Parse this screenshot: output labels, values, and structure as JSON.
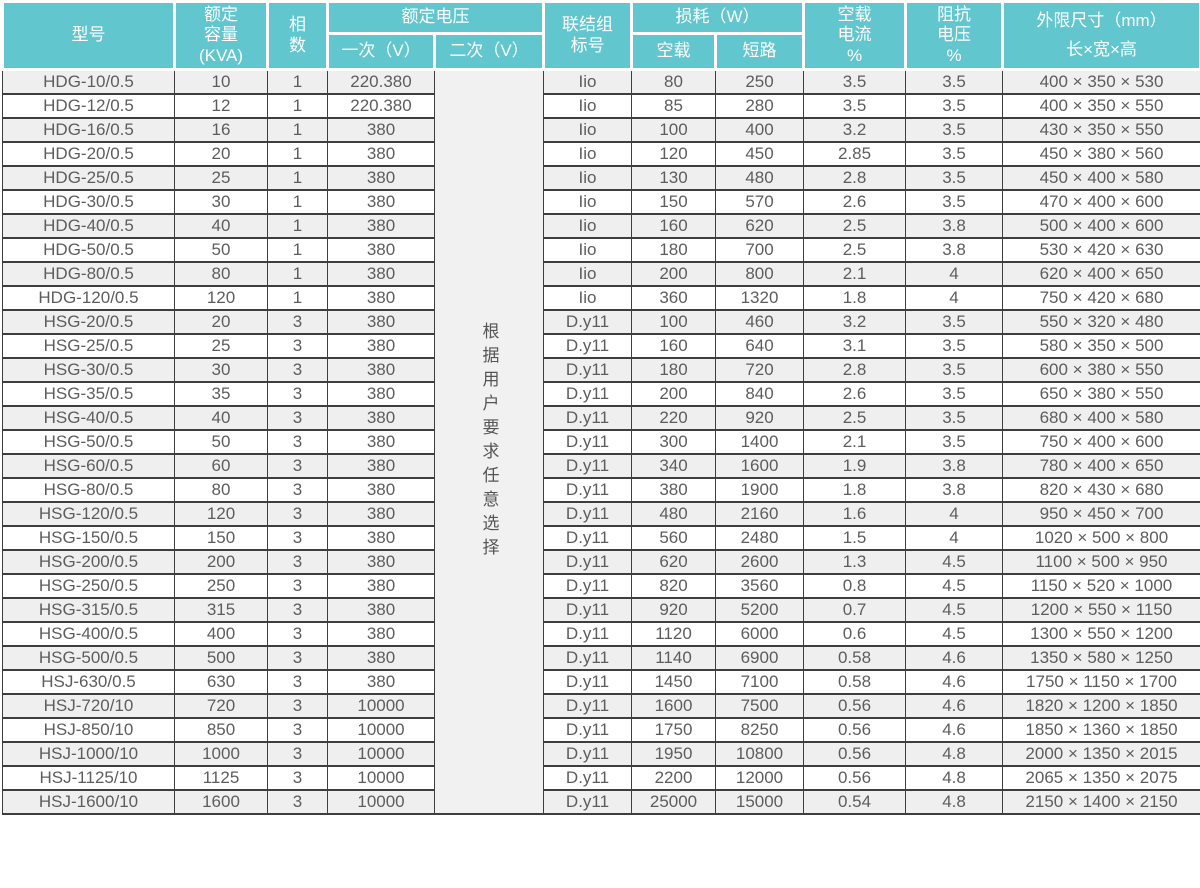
{
  "colors": {
    "header_bg": "#62c6cf",
    "header_text": "#ffffff",
    "border": "#3e3e3e",
    "row_alt_bg": "#efefef",
    "note_bg": "#f1f1f1",
    "cell_text": "#5d5d5d"
  },
  "table": {
    "header": {
      "model": "型号",
      "capacity": "额定\n容量\n(KVA)",
      "phases": "相\n数",
      "voltage_group": "额定电压",
      "primary": "一次（V）",
      "secondary": "二次（V）",
      "connection": "联结组\n标号",
      "loss_group": "损耗（W）",
      "no_load": "空载",
      "short_circuit": "短路",
      "no_load_current": "空载\n电流\n%",
      "impedance_voltage": "阻抗\n电压\n%",
      "dimensions": "外限尺寸（mm）\n长×宽×高"
    },
    "secondary_note": "根据用户要求任意选择",
    "rows": [
      {
        "model": "HDG-10/0.5",
        "capacity_kva": "10",
        "phases": "1",
        "primary_v": "220.380",
        "connection": "Iio",
        "no_load_w": "80",
        "short_circuit_w": "250",
        "no_load_current_pct": "3.5",
        "impedance_v_pct": "3.5",
        "dimensions": "400 × 350 × 530"
      },
      {
        "model": "HDG-12/0.5",
        "capacity_kva": "12",
        "phases": "1",
        "primary_v": "220.380",
        "connection": "Iio",
        "no_load_w": "85",
        "short_circuit_w": "280",
        "no_load_current_pct": "3.5",
        "impedance_v_pct": "3.5",
        "dimensions": "400 × 350 × 550"
      },
      {
        "model": "HDG-16/0.5",
        "capacity_kva": "16",
        "phases": "1",
        "primary_v": "380",
        "connection": "Iio",
        "no_load_w": "100",
        "short_circuit_w": "400",
        "no_load_current_pct": "3.2",
        "impedance_v_pct": "3.5",
        "dimensions": "430 × 350 × 550"
      },
      {
        "model": "HDG-20/0.5",
        "capacity_kva": "20",
        "phases": "1",
        "primary_v": "380",
        "connection": "Iio",
        "no_load_w": "120",
        "short_circuit_w": "450",
        "no_load_current_pct": "2.85",
        "impedance_v_pct": "3.5",
        "dimensions": "450 × 380 × 560"
      },
      {
        "model": "HDG-25/0.5",
        "capacity_kva": "25",
        "phases": "1",
        "primary_v": "380",
        "connection": "Iio",
        "no_load_w": "130",
        "short_circuit_w": "480",
        "no_load_current_pct": "2.8",
        "impedance_v_pct": "3.5",
        "dimensions": "450 × 400 × 580"
      },
      {
        "model": "HDG-30/0.5",
        "capacity_kva": "30",
        "phases": "1",
        "primary_v": "380",
        "connection": "Iio",
        "no_load_w": "150",
        "short_circuit_w": "570",
        "no_load_current_pct": "2.6",
        "impedance_v_pct": "3.5",
        "dimensions": "470 × 400 × 600"
      },
      {
        "model": "HDG-40/0.5",
        "capacity_kva": "40",
        "phases": "1",
        "primary_v": "380",
        "connection": "Iio",
        "no_load_w": "160",
        "short_circuit_w": "620",
        "no_load_current_pct": "2.5",
        "impedance_v_pct": "3.8",
        "dimensions": "500 × 400 × 600"
      },
      {
        "model": "HDG-50/0.5",
        "capacity_kva": "50",
        "phases": "1",
        "primary_v": "380",
        "connection": "Iio",
        "no_load_w": "180",
        "short_circuit_w": "700",
        "no_load_current_pct": "2.5",
        "impedance_v_pct": "3.8",
        "dimensions": "530 × 420 × 630"
      },
      {
        "model": "HDG-80/0.5",
        "capacity_kva": "80",
        "phases": "1",
        "primary_v": "380",
        "connection": "Iio",
        "no_load_w": "200",
        "short_circuit_w": "800",
        "no_load_current_pct": "2.1",
        "impedance_v_pct": "4",
        "dimensions": "620 × 400 × 650"
      },
      {
        "model": "HDG-120/0.5",
        "capacity_kva": "120",
        "phases": "1",
        "primary_v": "380",
        "connection": "Iio",
        "no_load_w": "360",
        "short_circuit_w": "1320",
        "no_load_current_pct": "1.8",
        "impedance_v_pct": "4",
        "dimensions": "750 × 420 × 680"
      },
      {
        "model": "HSG-20/0.5",
        "capacity_kva": "20",
        "phases": "3",
        "primary_v": "380",
        "connection": "D.y11",
        "no_load_w": "100",
        "short_circuit_w": "460",
        "no_load_current_pct": "3.2",
        "impedance_v_pct": "3.5",
        "dimensions": "550 × 320 × 480"
      },
      {
        "model": "HSG-25/0.5",
        "capacity_kva": "25",
        "phases": "3",
        "primary_v": "380",
        "connection": "D.y11",
        "no_load_w": "160",
        "short_circuit_w": "640",
        "no_load_current_pct": "3.1",
        "impedance_v_pct": "3.5",
        "dimensions": "580 × 350 × 500"
      },
      {
        "model": "HSG-30/0.5",
        "capacity_kva": "30",
        "phases": "3",
        "primary_v": "380",
        "connection": "D.y11",
        "no_load_w": "180",
        "short_circuit_w": "720",
        "no_load_current_pct": "2.8",
        "impedance_v_pct": "3.5",
        "dimensions": "600 × 380 × 550"
      },
      {
        "model": "HSG-35/0.5",
        "capacity_kva": "35",
        "phases": "3",
        "primary_v": "380",
        "connection": "D.y11",
        "no_load_w": "200",
        "short_circuit_w": "840",
        "no_load_current_pct": "2.6",
        "impedance_v_pct": "3.5",
        "dimensions": "650 × 380 × 550"
      },
      {
        "model": "HSG-40/0.5",
        "capacity_kva": "40",
        "phases": "3",
        "primary_v": "380",
        "connection": "D.y11",
        "no_load_w": "220",
        "short_circuit_w": "920",
        "no_load_current_pct": "2.5",
        "impedance_v_pct": "3.5",
        "dimensions": "680 × 400 × 580"
      },
      {
        "model": "HSG-50/0.5",
        "capacity_kva": "50",
        "phases": "3",
        "primary_v": "380",
        "connection": "D.y11",
        "no_load_w": "300",
        "short_circuit_w": "1400",
        "no_load_current_pct": "2.1",
        "impedance_v_pct": "3.5",
        "dimensions": "750 × 400 × 600"
      },
      {
        "model": "HSG-60/0.5",
        "capacity_kva": "60",
        "phases": "3",
        "primary_v": "380",
        "connection": "D.y11",
        "no_load_w": "340",
        "short_circuit_w": "1600",
        "no_load_current_pct": "1.9",
        "impedance_v_pct": "3.8",
        "dimensions": "780 × 400 × 650"
      },
      {
        "model": "HSG-80/0.5",
        "capacity_kva": "80",
        "phases": "3",
        "primary_v": "380",
        "connection": "D.y11",
        "no_load_w": "380",
        "short_circuit_w": "1900",
        "no_load_current_pct": "1.8",
        "impedance_v_pct": "3.8",
        "dimensions": "820 × 430 × 680"
      },
      {
        "model": "HSG-120/0.5",
        "capacity_kva": "120",
        "phases": "3",
        "primary_v": "380",
        "connection": "D.y11",
        "no_load_w": "480",
        "short_circuit_w": "2160",
        "no_load_current_pct": "1.6",
        "impedance_v_pct": "4",
        "dimensions": "950 × 450 × 700"
      },
      {
        "model": "HSG-150/0.5",
        "capacity_kva": "150",
        "phases": "3",
        "primary_v": "380",
        "connection": "D.y11",
        "no_load_w": "560",
        "short_circuit_w": "2480",
        "no_load_current_pct": "1.5",
        "impedance_v_pct": "4",
        "dimensions": "1020 × 500 × 800"
      },
      {
        "model": "HSG-200/0.5",
        "capacity_kva": "200",
        "phases": "3",
        "primary_v": "380",
        "connection": "D.y11",
        "no_load_w": "620",
        "short_circuit_w": "2600",
        "no_load_current_pct": "1.3",
        "impedance_v_pct": "4.5",
        "dimensions": "1100 × 500 × 950"
      },
      {
        "model": "HSG-250/0.5",
        "capacity_kva": "250",
        "phases": "3",
        "primary_v": "380",
        "connection": "D.y11",
        "no_load_w": "820",
        "short_circuit_w": "3560",
        "no_load_current_pct": "0.8",
        "impedance_v_pct": "4.5",
        "dimensions": "1150 × 520 × 1000"
      },
      {
        "model": "HSG-315/0.5",
        "capacity_kva": "315",
        "phases": "3",
        "primary_v": "380",
        "connection": "D.y11",
        "no_load_w": "920",
        "short_circuit_w": "5200",
        "no_load_current_pct": "0.7",
        "impedance_v_pct": "4.5",
        "dimensions": "1200 × 550 × 1150"
      },
      {
        "model": "HSG-400/0.5",
        "capacity_kva": "400",
        "phases": "3",
        "primary_v": "380",
        "connection": "D.y11",
        "no_load_w": "1120",
        "short_circuit_w": "6000",
        "no_load_current_pct": "0.6",
        "impedance_v_pct": "4.5",
        "dimensions": "1300 × 550 × 1200"
      },
      {
        "model": "HSG-500/0.5",
        "capacity_kva": "500",
        "phases": "3",
        "primary_v": "380",
        "connection": "D.y11",
        "no_load_w": "1140",
        "short_circuit_w": "6900",
        "no_load_current_pct": "0.58",
        "impedance_v_pct": "4.6",
        "dimensions": "1350 × 580 × 1250"
      },
      {
        "model": "HSJ-630/0.5",
        "capacity_kva": "630",
        "phases": "3",
        "primary_v": "380",
        "connection": "D.y11",
        "no_load_w": "1450",
        "short_circuit_w": "7100",
        "no_load_current_pct": "0.58",
        "impedance_v_pct": "4.6",
        "dimensions": "1750 × 1150 × 1700"
      },
      {
        "model": "HSJ-720/10",
        "capacity_kva": "720",
        "phases": "3",
        "primary_v": "10000",
        "connection": "D.y11",
        "no_load_w": "1600",
        "short_circuit_w": "7500",
        "no_load_current_pct": "0.56",
        "impedance_v_pct": "4.6",
        "dimensions": "1820 × 1200 × 1850"
      },
      {
        "model": "HSJ-850/10",
        "capacity_kva": "850",
        "phases": "3",
        "primary_v": "10000",
        "connection": "D.y11",
        "no_load_w": "1750",
        "short_circuit_w": "8250",
        "no_load_current_pct": "0.56",
        "impedance_v_pct": "4.6",
        "dimensions": "1850 × 1360 × 1850"
      },
      {
        "model": "HSJ-1000/10",
        "capacity_kva": "1000",
        "phases": "3",
        "primary_v": "10000",
        "connection": "D.y11",
        "no_load_w": "1950",
        "short_circuit_w": "10800",
        "no_load_current_pct": "0.56",
        "impedance_v_pct": "4.8",
        "dimensions": "2000 × 1350 × 2015"
      },
      {
        "model": "HSJ-1125/10",
        "capacity_kva": "1125",
        "phases": "3",
        "primary_v": "10000",
        "connection": "D.y11",
        "no_load_w": "2200",
        "short_circuit_w": "12000",
        "no_load_current_pct": "0.56",
        "impedance_v_pct": "4.8",
        "dimensions": "2065 × 1350 × 2075"
      },
      {
        "model": "HSJ-1600/10",
        "capacity_kva": "1600",
        "phases": "3",
        "primary_v": "10000",
        "connection": "D.y11",
        "no_load_w": "25000",
        "short_circuit_w": "15000",
        "no_load_current_pct": "0.54",
        "impedance_v_pct": "4.8",
        "dimensions": "2150 × 1400 × 2150"
      }
    ]
  }
}
